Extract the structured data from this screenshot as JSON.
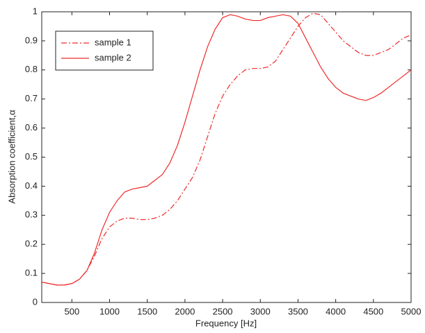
{
  "chart_data": {
    "type": "line",
    "xlabel": "Frequency [Hz]",
    "ylabel": "Absorption coefficient,α",
    "x": [
      100,
      200,
      300,
      400,
      500,
      600,
      700,
      800,
      900,
      1000,
      1100,
      1200,
      1300,
      1400,
      1500,
      1600,
      1700,
      1800,
      1900,
      2000,
      2100,
      2200,
      2300,
      2400,
      2500,
      2600,
      2700,
      2800,
      2900,
      3000,
      3100,
      3200,
      3300,
      3400,
      3500,
      3600,
      3700,
      3800,
      3900,
      4000,
      4100,
      4200,
      4300,
      4400,
      4500,
      4600,
      4700,
      4800,
      4900,
      5000
    ],
    "series": [
      {
        "name": "sample 1",
        "color": "#ee2a2a",
        "line_style": "dashdot",
        "values": [
          0.07,
          0.065,
          0.06,
          0.06,
          0.065,
          0.08,
          0.11,
          0.16,
          0.22,
          0.26,
          0.28,
          0.29,
          0.29,
          0.285,
          0.285,
          0.29,
          0.3,
          0.32,
          0.35,
          0.39,
          0.43,
          0.49,
          0.57,
          0.65,
          0.71,
          0.75,
          0.78,
          0.8,
          0.805,
          0.805,
          0.81,
          0.83,
          0.87,
          0.91,
          0.95,
          0.98,
          0.995,
          0.99,
          0.96,
          0.93,
          0.9,
          0.88,
          0.86,
          0.85,
          0.85,
          0.86,
          0.87,
          0.89,
          0.91,
          0.92
        ]
      },
      {
        "name": "sample 2",
        "color": "#ee2a2a",
        "line_style": "solid",
        "values": [
          0.07,
          0.065,
          0.06,
          0.06,
          0.065,
          0.08,
          0.11,
          0.17,
          0.25,
          0.31,
          0.35,
          0.38,
          0.39,
          0.395,
          0.4,
          0.42,
          0.44,
          0.48,
          0.54,
          0.62,
          0.71,
          0.8,
          0.88,
          0.94,
          0.98,
          0.99,
          0.985,
          0.975,
          0.97,
          0.97,
          0.98,
          0.985,
          0.99,
          0.985,
          0.96,
          0.91,
          0.86,
          0.81,
          0.77,
          0.74,
          0.72,
          0.71,
          0.7,
          0.695,
          0.705,
          0.72,
          0.74,
          0.76,
          0.78,
          0.8
        ]
      }
    ],
    "xlim": [
      100,
      5000
    ],
    "xticks": [
      500,
      1000,
      1500,
      2000,
      2500,
      3000,
      3500,
      4000,
      4500,
      5000
    ],
    "ylim": [
      0,
      1
    ],
    "yticks": [
      0,
      0.1,
      0.2,
      0.3,
      0.4,
      0.5,
      0.6,
      0.7,
      0.8,
      0.9,
      1
    ],
    "grid": false,
    "legend": "top-left"
  }
}
